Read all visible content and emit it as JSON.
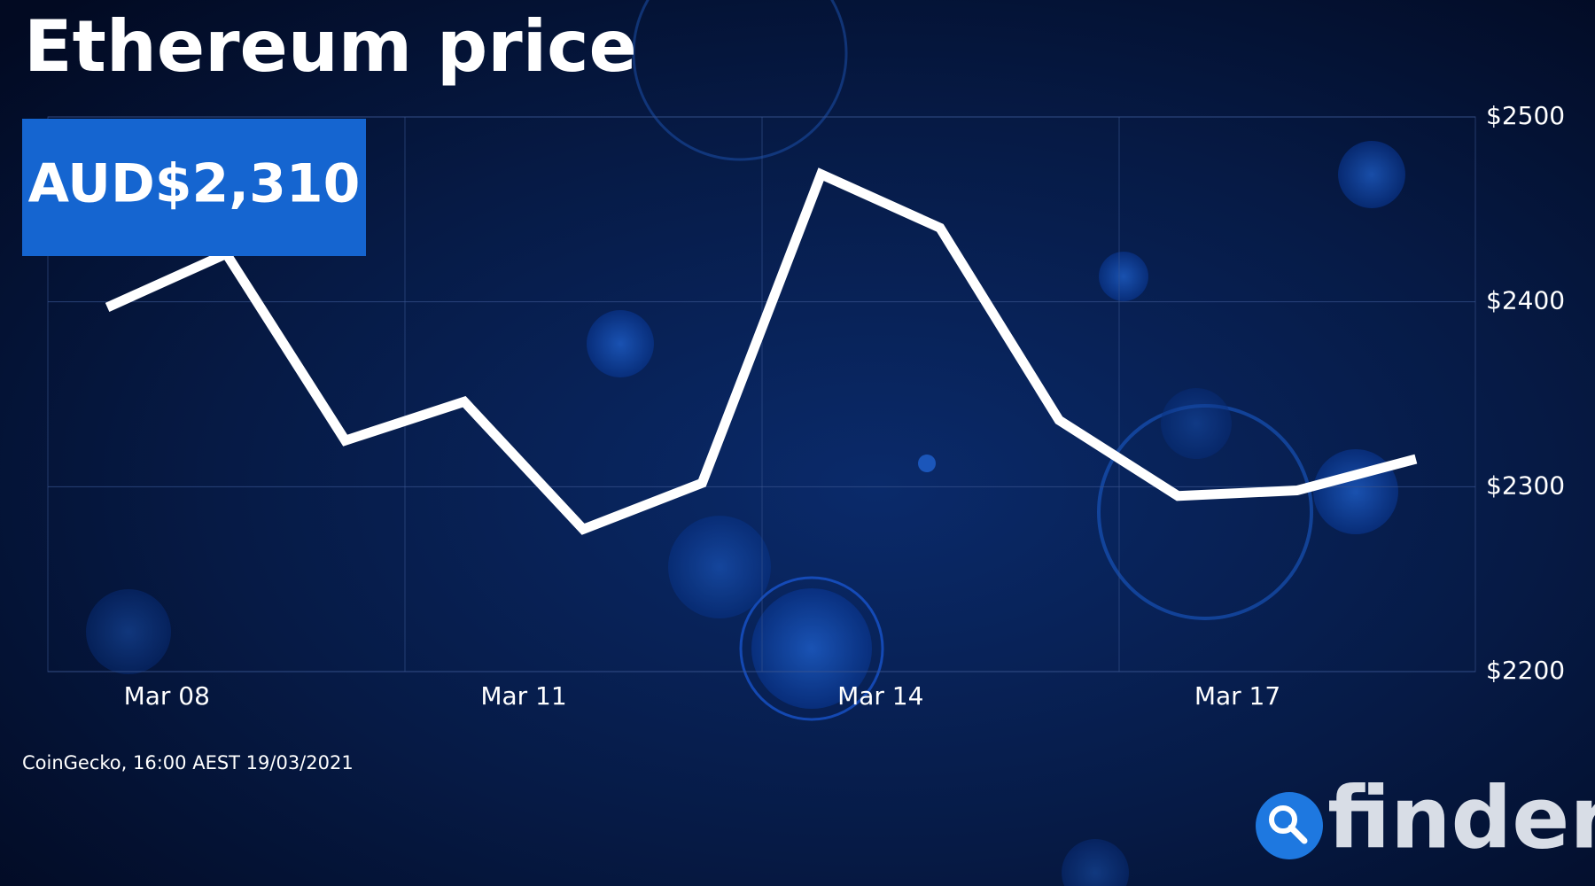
{
  "header": {
    "title": "Ethereum price",
    "price": "AUD$2,310"
  },
  "chart_data": {
    "type": "line",
    "x": [
      8,
      9,
      10,
      11,
      12,
      13,
      14,
      15,
      16,
      17,
      18,
      19
    ],
    "series": [
      {
        "color": "#ffffff",
        "values": [
          2397,
          2426,
          2325,
          2346,
          2277,
          2302,
          2469,
          2440,
          2336,
          2295,
          2298,
          2315
        ]
      }
    ],
    "xlim": [
      7.5,
      19.5
    ],
    "xticks": [
      {
        "value": 8.5,
        "label": "Mar 08"
      },
      {
        "value": 11.5,
        "label": "Mar 11"
      },
      {
        "value": 14.5,
        "label": "Mar 14"
      },
      {
        "value": 17.5,
        "label": "Mar 17"
      }
    ],
    "ylim": [
      2200,
      2500
    ],
    "yticks": [
      {
        "value": 2200,
        "label": "$2200"
      },
      {
        "value": 2300,
        "label": "$2300"
      },
      {
        "value": 2400,
        "label": "$2400"
      },
      {
        "value": 2500,
        "label": "$2500"
      }
    ],
    "grid": true
  },
  "footer": {
    "source": "CoinGecko, 16:00 AEST 19/03/2021",
    "logo": "finder"
  }
}
